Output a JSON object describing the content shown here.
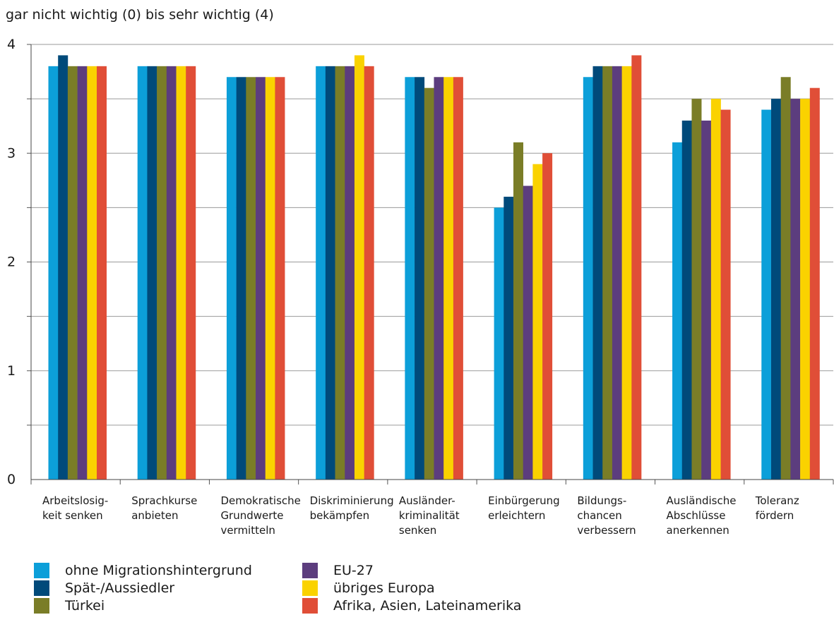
{
  "chart_data": {
    "type": "bar",
    "title": "gar nicht wichtig (0) bis sehr wichtig (4)",
    "xlabel": "",
    "ylabel": "",
    "ylim": [
      0,
      4
    ],
    "yticks": [
      "0",
      "1",
      "2",
      "3",
      "4"
    ],
    "grid": true,
    "legend_position": "bottom",
    "categories": [
      [
        "Arbeitslosig-",
        "keit senken"
      ],
      [
        "Sprachkurse",
        "anbieten"
      ],
      [
        "Demokratische",
        "Grundwerte",
        "vermitteln"
      ],
      [
        "Diskriminierung",
        "bekämpfen"
      ],
      [
        "Ausländer-",
        "kriminalität",
        "senken"
      ],
      [
        "Einbürgerung",
        "erleichtern"
      ],
      [
        "Bildungs-",
        "chancen",
        "verbessern"
      ],
      [
        "Ausländische",
        "Abschlüsse",
        "anerkennen"
      ],
      [
        "Toleranz",
        "fördern"
      ]
    ],
    "series": [
      {
        "name": "ohne Migrationshintergrund",
        "color": "#0c9fd9",
        "values": [
          3.8,
          3.8,
          3.7,
          3.8,
          3.7,
          2.5,
          3.7,
          3.1,
          3.4
        ]
      },
      {
        "name": "Spät-/Aussiedler",
        "color": "#004a7a",
        "values": [
          3.9,
          3.8,
          3.7,
          3.8,
          3.7,
          2.6,
          3.8,
          3.3,
          3.5
        ]
      },
      {
        "name": "Türkei",
        "color": "#7a7d27",
        "values": [
          3.8,
          3.8,
          3.7,
          3.8,
          3.6,
          3.1,
          3.8,
          3.5,
          3.7
        ]
      },
      {
        "name": "EU-27",
        "color": "#5c3d7e",
        "values": [
          3.8,
          3.8,
          3.7,
          3.8,
          3.7,
          2.7,
          3.8,
          3.3,
          3.5
        ]
      },
      {
        "name": "übriges Europa",
        "color": "#fad200",
        "values": [
          3.8,
          3.8,
          3.7,
          3.9,
          3.7,
          2.9,
          3.8,
          3.5,
          3.5
        ]
      },
      {
        "name": "Afrika, Asien, Lateinamerika",
        "color": "#e04e37",
        "values": [
          3.8,
          3.8,
          3.7,
          3.8,
          3.7,
          3.0,
          3.9,
          3.4,
          3.6
        ]
      }
    ]
  }
}
